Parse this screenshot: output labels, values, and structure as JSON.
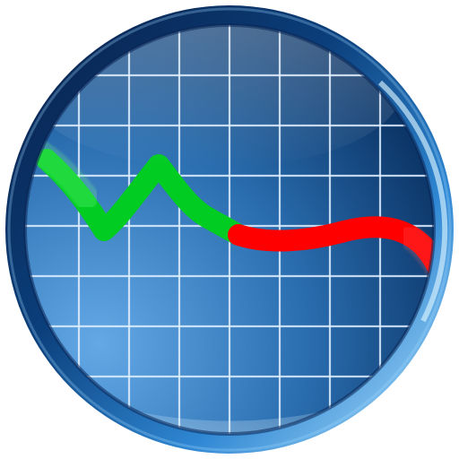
{
  "icon": {
    "name": "monitor-chart-app-icon",
    "colors": {
      "bezel_dark": "#071b3e",
      "bezel_light": "#9fd8ff",
      "screen_light": "#5b9fdc",
      "screen_dark": "#0d3f73",
      "grid": "#dfefff",
      "trend_up": "#00cc22",
      "trend_down": "#ff0000"
    }
  }
}
